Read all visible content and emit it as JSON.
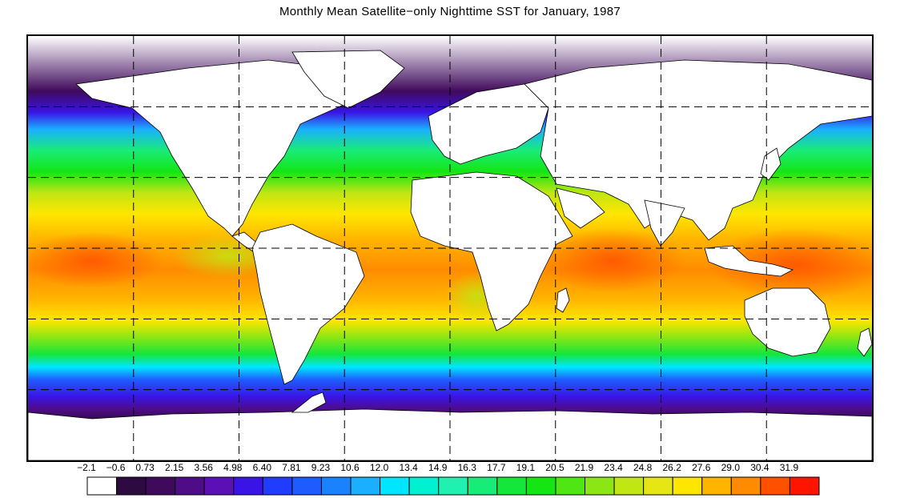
{
  "title": "Monthly Mean Satellite−only Nighttime SST for January, 1987",
  "map": {
    "projection": "equirectangular",
    "lon_range": [
      -180,
      180
    ],
    "lat_range": [
      -90,
      90
    ],
    "gridlines": "dashed",
    "gridline_lons": [
      -135,
      -90,
      -45,
      0,
      45,
      90,
      135
    ],
    "gridline_lats": [
      -60,
      -30,
      0,
      30,
      60
    ],
    "land_color": "#ffffff",
    "coastline_color": "#000000"
  },
  "colorbar": {
    "labels": [
      "−2.1",
      "−0.6",
      "0.73",
      "2.15",
      "3.56",
      "4.98",
      "6.40",
      "7.81",
      "9.23",
      "10.6",
      "12.0",
      "13.4",
      "14.9",
      "16.3",
      "17.7",
      "19.1",
      "20.5",
      "21.9",
      "23.4",
      "24.8",
      "26.2",
      "27.6",
      "29.0",
      "30.4",
      "31.9"
    ],
    "colors": [
      "#ffffff",
      "#2d0a40",
      "#400a5c",
      "#4f0c87",
      "#5a10b4",
      "#3a14e6",
      "#1f3cff",
      "#1e5cff",
      "#1a82ff",
      "#1ab0ff",
      "#00e6ff",
      "#00f0d2",
      "#20f0b0",
      "#18ec78",
      "#14e63c",
      "#14e614",
      "#50e614",
      "#8ce614",
      "#c0e614",
      "#e6e614",
      "#ffe600",
      "#ffb400",
      "#ff8c00",
      "#ff5000",
      "#ff1400"
    ]
  }
}
